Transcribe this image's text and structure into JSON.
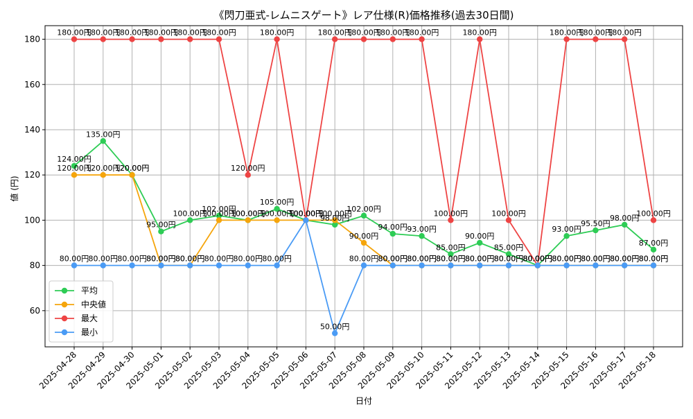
{
  "chart_data": {
    "type": "line",
    "title": "《閃刀亜式-レムニスゲート》レア仕様(R)価格推移(過去30日間)",
    "xlabel": "日付",
    "ylabel": "値 (円)",
    "ylim": [
      44,
      186
    ],
    "yticks": [
      60,
      80,
      100,
      120,
      140,
      160,
      180
    ],
    "grid": true,
    "legend_position": "lower-left",
    "label_suffix": "円",
    "x": [
      "2025-04-28",
      "2025-04-29",
      "2025-04-30",
      "2025-05-01",
      "2025-05-02",
      "2025-05-03",
      "2025-05-04",
      "2025-05-05",
      "2025-05-06",
      "2025-05-07",
      "2025-05-08",
      "2025-05-09",
      "2025-05-10",
      "2025-05-11",
      "2025-05-12",
      "2025-05-13",
      "2025-05-14",
      "2025-05-15",
      "2025-05-16",
      "2025-05-17",
      "2025-05-18"
    ],
    "series": [
      {
        "name": "平均",
        "color": "#2ecc55",
        "values": [
          124,
          135,
          120,
          95,
          100,
          102,
          100,
          105,
          100,
          98,
          102,
          94,
          93,
          85,
          90,
          85,
          80,
          93,
          95.5,
          98,
          87
        ]
      },
      {
        "name": "中央値",
        "color": "#f5a50c",
        "values": [
          120,
          120,
          120,
          80,
          80,
          100,
          100,
          100,
          100,
          100,
          90,
          80,
          80,
          80,
          80,
          80,
          80,
          80,
          80,
          80,
          80
        ]
      },
      {
        "name": "最大",
        "color": "#ee4444",
        "values": [
          180,
          180,
          180,
          180,
          180,
          180,
          120,
          180,
          100,
          180,
          180,
          180,
          180,
          100,
          180,
          100,
          80,
          180,
          180,
          180,
          100
        ]
      },
      {
        "name": "最小",
        "color": "#4a9bf5",
        "values": [
          80,
          80,
          80,
          80,
          80,
          80,
          80,
          80,
          100,
          50,
          80,
          80,
          80,
          80,
          80,
          80,
          80,
          80,
          80,
          80,
          80
        ]
      }
    ]
  }
}
